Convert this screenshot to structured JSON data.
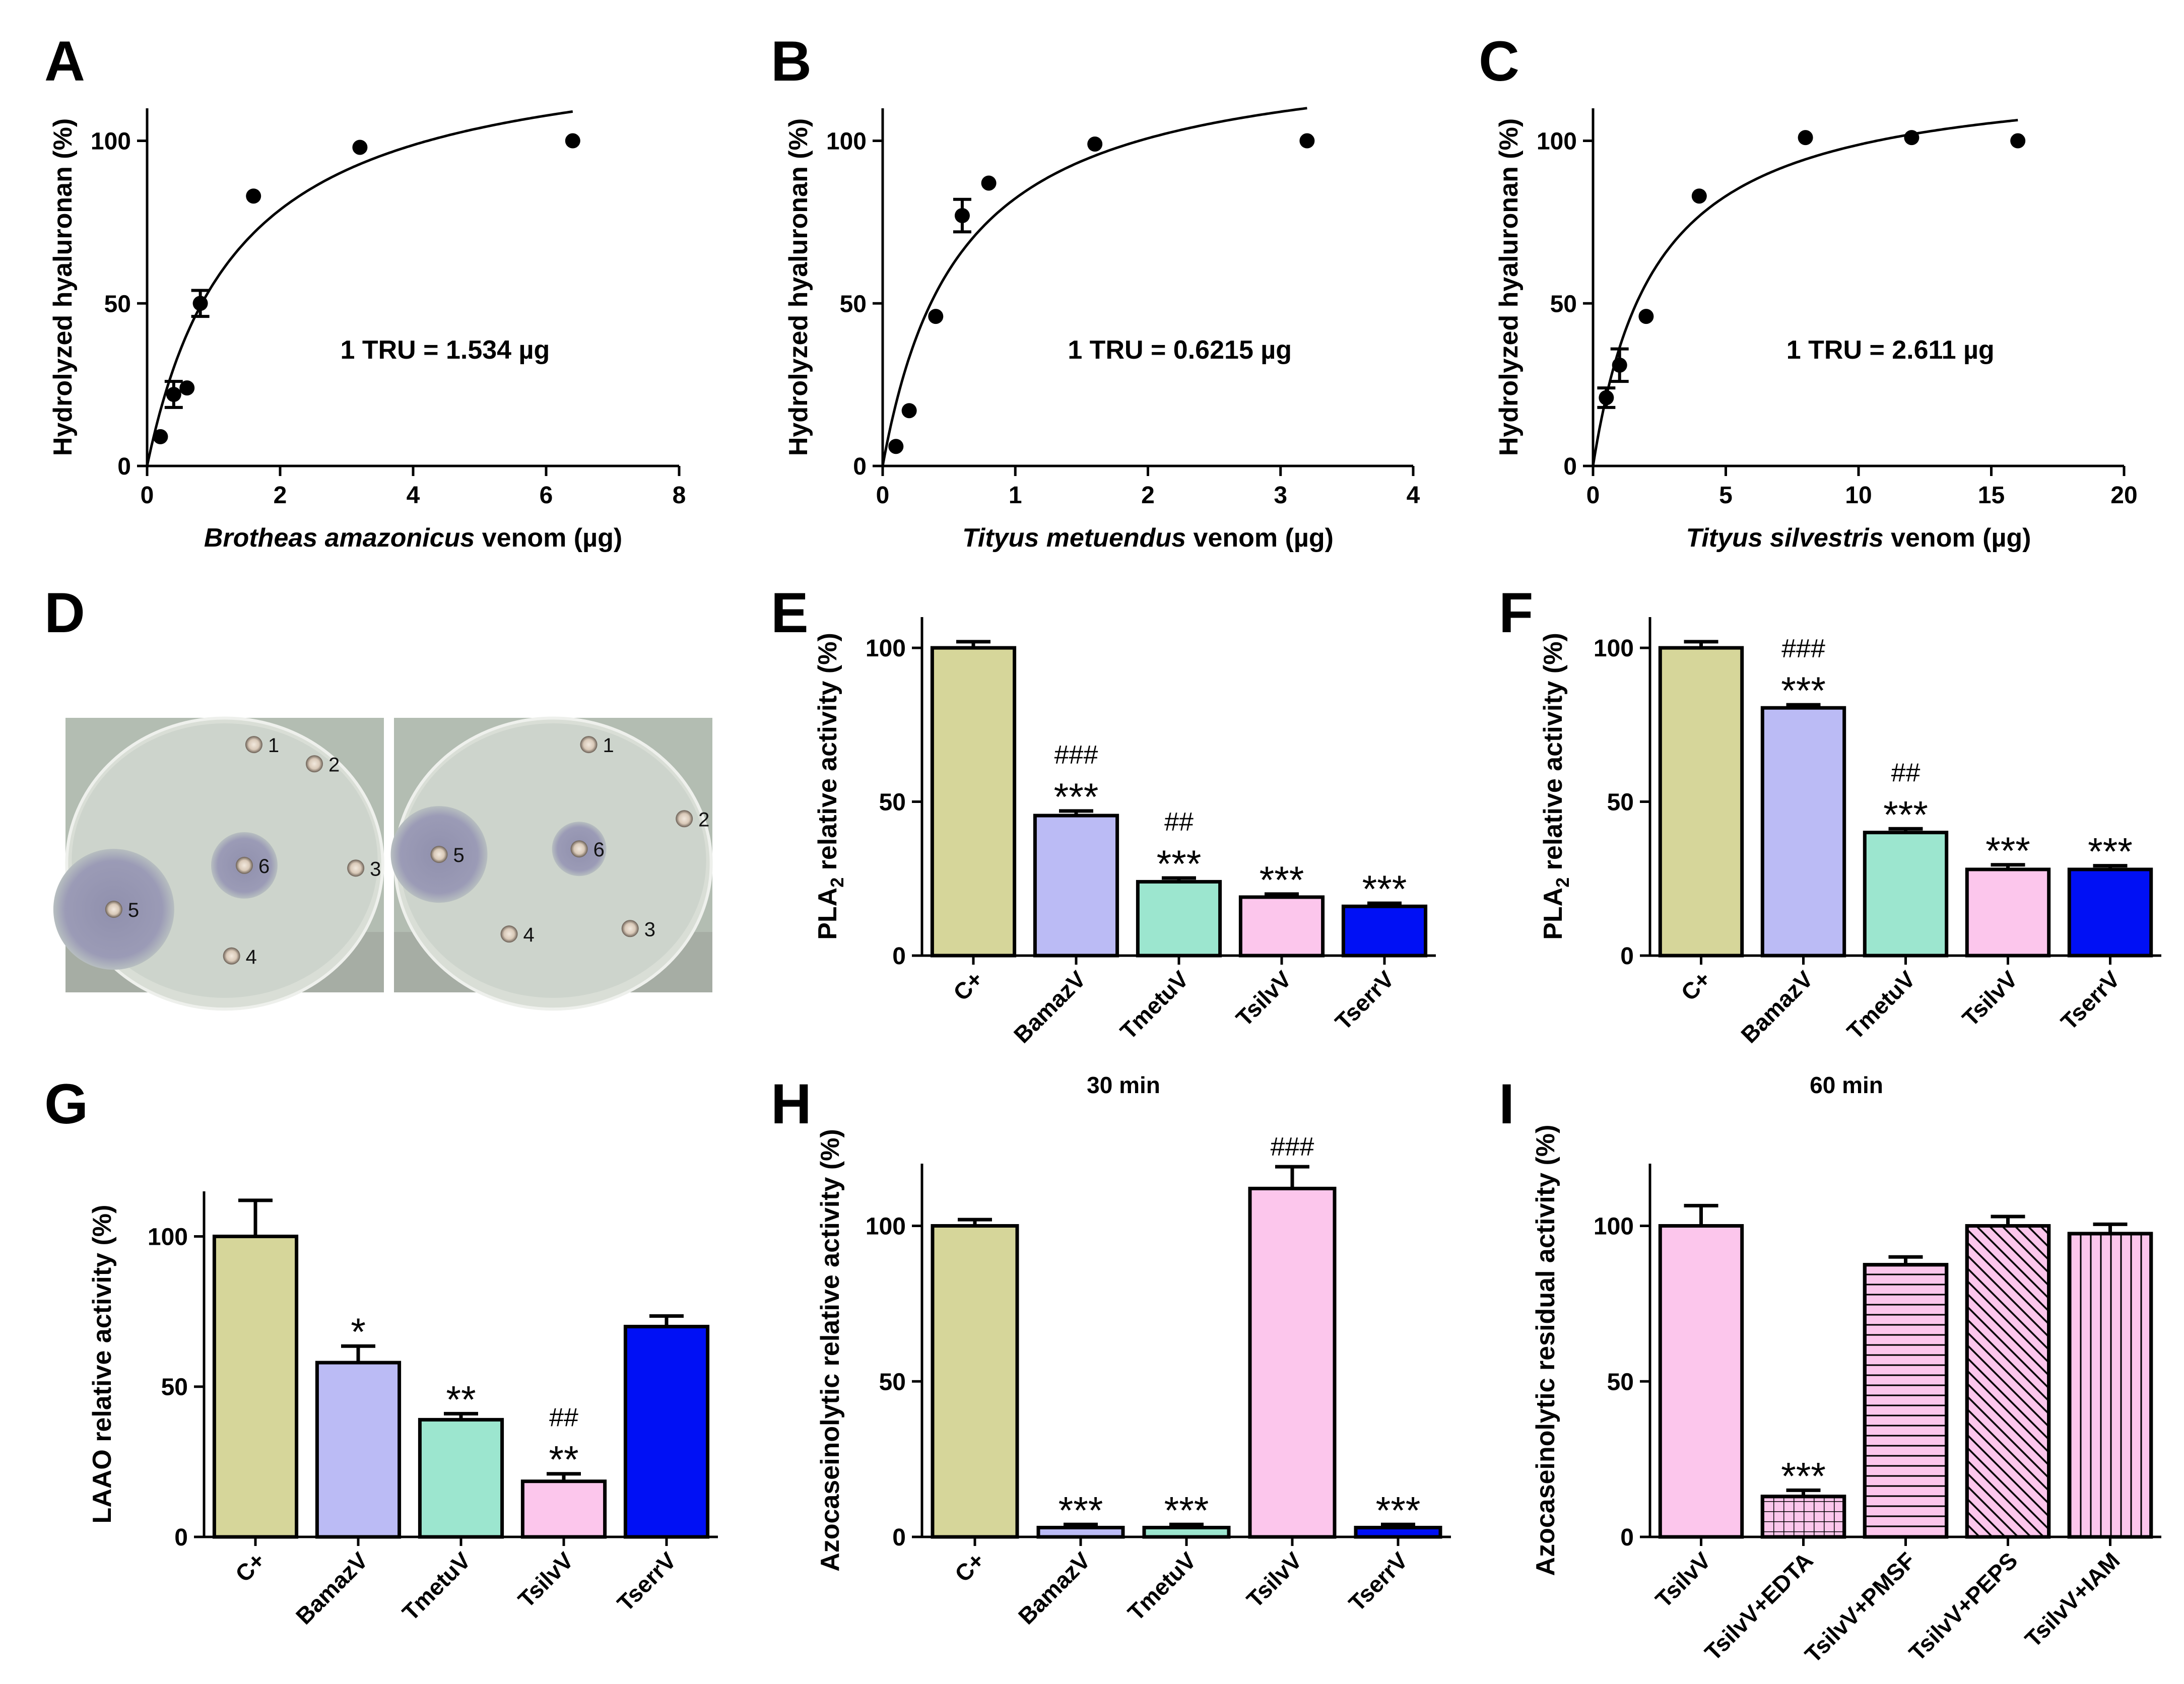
{
  "panel_letters": [
    "A",
    "B",
    "C",
    "D",
    "E",
    "F",
    "G",
    "H",
    "I"
  ],
  "colors": {
    "cplus": "#d6d69a",
    "bamaz": "#bbbbf5",
    "tmetu": "#9ce6cf",
    "tsilv": "#fcc6ec",
    "tserr": "#0010f5",
    "axis": "#000000",
    "plate_bg": "#b9c3b8",
    "agar": "#cdd4cc",
    "halo": "#8a8aa8"
  },
  "chart_data": [
    {
      "id": "A",
      "type": "scatter",
      "fit": "hyperbolic",
      "title": "",
      "xlabel_italic": "Brotheas amazonicus",
      "xlabel_rest": " venom (µg)",
      "ylabel": "Hydrolyzed hyaluronan (%)",
      "xlim": [
        0,
        8
      ],
      "ylim": [
        0,
        110
      ],
      "xticks": [
        0,
        2,
        4,
        6,
        8
      ],
      "yticks": [
        0,
        50,
        100
      ],
      "points": [
        {
          "x": 0.2,
          "y": 9,
          "err": 0
        },
        {
          "x": 0.4,
          "y": 22,
          "err": 4
        },
        {
          "x": 0.6,
          "y": 24,
          "err": 0
        },
        {
          "x": 0.8,
          "y": 50,
          "err": 4
        },
        {
          "x": 1.6,
          "y": 83,
          "err": 0
        },
        {
          "x": 3.2,
          "y": 98,
          "err": 0
        },
        {
          "x": 6.4,
          "y": 100,
          "err": 0
        }
      ],
      "fit_params": {
        "bmax": 132,
        "kd": 1.35,
        "xmax": 6.4
      },
      "annotation": "1 TRU = 1.534 µg"
    },
    {
      "id": "B",
      "type": "scatter",
      "fit": "hyperbolic",
      "title": "",
      "xlabel_italic": "Tityus metuendus",
      "xlabel_rest": " venom (µg)",
      "ylabel": "Hydrolyzed hyaluronan (%)",
      "xlim": [
        0,
        4
      ],
      "ylim": [
        0,
        110
      ],
      "xticks": [
        0,
        1,
        2,
        3,
        4
      ],
      "yticks": [
        0,
        50,
        100
      ],
      "points": [
        {
          "x": 0.1,
          "y": 6,
          "err": 0
        },
        {
          "x": 0.2,
          "y": 17,
          "err": 0
        },
        {
          "x": 0.4,
          "y": 46,
          "err": 0
        },
        {
          "x": 0.6,
          "y": 77,
          "err": 5
        },
        {
          "x": 0.8,
          "y": 87,
          "err": 0
        },
        {
          "x": 1.6,
          "y": 99,
          "err": 0
        },
        {
          "x": 3.2,
          "y": 100,
          "err": 0
        }
      ],
      "fit_params": {
        "bmax": 130,
        "kd": 0.58,
        "xmax": 3.2
      },
      "annotation": "1 TRU = 0.6215 µg"
    },
    {
      "id": "C",
      "type": "scatter",
      "fit": "hyperbolic",
      "title": "",
      "xlabel_italic": "Tityus silvestris",
      "xlabel_rest": " venom (µg)",
      "ylabel": "Hydrolyzed hyaluronan (%)",
      "xlim": [
        0,
        20
      ],
      "ylim": [
        0,
        110
      ],
      "xticks": [
        0,
        5,
        10,
        15,
        20
      ],
      "yticks": [
        0,
        50,
        100
      ],
      "points": [
        {
          "x": 0.5,
          "y": 21,
          "err": 3
        },
        {
          "x": 1.0,
          "y": 31,
          "err": 5
        },
        {
          "x": 2.0,
          "y": 46,
          "err": 0
        },
        {
          "x": 4.0,
          "y": 83,
          "err": 0
        },
        {
          "x": 8.0,
          "y": 101,
          "err": 0
        },
        {
          "x": 12.0,
          "y": 101,
          "err": 0
        },
        {
          "x": 16.0,
          "y": 100,
          "err": 0
        }
      ],
      "fit_params": {
        "bmax": 122,
        "kd": 2.35,
        "xmax": 16
      },
      "annotation": "1 TRU = 2.611 µg"
    },
    {
      "id": "E",
      "type": "bar",
      "title": "30 min",
      "ylabel_main": "PLA",
      "ylabel_sub": "2",
      "ylabel_tail": " relative activity (%)",
      "ylim": [
        0,
        110
      ],
      "yticks": [
        0,
        50,
        100
      ],
      "categories": [
        "C+",
        "BamazV",
        "TmetuV",
        "TsilvV",
        "TserrV"
      ],
      "values": [
        100,
        45.5,
        24,
        19,
        16
      ],
      "errors": [
        2,
        1.5,
        1.2,
        1,
        1
      ],
      "fills": [
        "cplus",
        "bamaz",
        "tmetu",
        "tsilv",
        "tserr"
      ],
      "patterns": [
        "",
        "",
        "",
        "",
        ""
      ],
      "sig_star": [
        "",
        "***",
        "***",
        "***",
        "***"
      ],
      "sig_hash": [
        "",
        "###",
        "##",
        "",
        ""
      ]
    },
    {
      "id": "F",
      "type": "bar",
      "title": "60 min",
      "ylabel_main": "PLA",
      "ylabel_sub": "2",
      "ylabel_tail": " relative activity (%)",
      "ylim": [
        0,
        110
      ],
      "yticks": [
        0,
        50,
        100
      ],
      "categories": [
        "C+",
        "BamazV",
        "TmetuV",
        "TsilvV",
        "TserrV"
      ],
      "values": [
        100,
        80.5,
        40,
        28,
        28
      ],
      "errors": [
        2,
        1,
        1.2,
        1.5,
        1.2
      ],
      "fills": [
        "cplus",
        "bamaz",
        "tmetu",
        "tsilv",
        "tserr"
      ],
      "patterns": [
        "",
        "",
        "",
        "",
        ""
      ],
      "sig_star": [
        "",
        "***",
        "***",
        "***",
        "***"
      ],
      "sig_hash": [
        "",
        "###",
        "##",
        "",
        ""
      ]
    },
    {
      "id": "G",
      "type": "bar",
      "title": "",
      "ylabel": "LAAO relative activity (%)",
      "ylim": [
        0,
        115
      ],
      "yticks": [
        0,
        50,
        100
      ],
      "categories": [
        "C+",
        "BamazV",
        "TmetuV",
        "TsilvV",
        "TserrV"
      ],
      "values": [
        100,
        58,
        39,
        18.5,
        70
      ],
      "errors": [
        12,
        5.5,
        2,
        2.5,
        3.5
      ],
      "fills": [
        "cplus",
        "bamaz",
        "tmetu",
        "tsilv",
        "tserr"
      ],
      "patterns": [
        "",
        "",
        "",
        "",
        ""
      ],
      "sig_star": [
        "",
        "*",
        "**",
        "**",
        ""
      ],
      "sig_hash": [
        "",
        "",
        "",
        "##",
        ""
      ]
    },
    {
      "id": "H",
      "type": "bar",
      "title": "",
      "ylabel": "Azocaseinolytic relative activity (%)",
      "ylim": [
        0,
        120
      ],
      "yticks": [
        0,
        50,
        100
      ],
      "categories": [
        "C+",
        "BamazV",
        "TmetuV",
        "TsilvV",
        "TserrV"
      ],
      "values": [
        100,
        3,
        3,
        112,
        3
      ],
      "errors": [
        2,
        1,
        1,
        7,
        1
      ],
      "fills": [
        "cplus",
        "bamaz",
        "tmetu",
        "tsilv",
        "tserr"
      ],
      "patterns": [
        "",
        "",
        "",
        "",
        ""
      ],
      "sig_star": [
        "",
        "***",
        "***",
        "",
        "***"
      ],
      "sig_hash": [
        "",
        "",
        "",
        "###",
        ""
      ]
    },
    {
      "id": "I",
      "type": "bar",
      "title": "",
      "ylabel": "Azocaseinolytic residual activity (%)",
      "ylim": [
        0,
        120
      ],
      "yticks": [
        0,
        50,
        100
      ],
      "categories": [
        "TsilvV",
        "TsilvV+EDTA",
        "TsilvV+PMSF",
        "TsilvV+PEPS",
        "TsilvV+IAM"
      ],
      "values": [
        100,
        13,
        87.5,
        100,
        97.5
      ],
      "errors": [
        6.5,
        2,
        2.5,
        3,
        3
      ],
      "fills": [
        "tsilv",
        "tsilv",
        "tsilv",
        "tsilv",
        "tsilv"
      ],
      "patterns": [
        "",
        "grid",
        "horiz",
        "diag",
        "vert"
      ],
      "sig_star": [
        "",
        "***",
        "",
        "",
        ""
      ],
      "sig_hash": [
        "",
        "",
        "",
        "",
        ""
      ]
    }
  ],
  "plates": [
    {
      "name": "plate-left",
      "wells": [
        {
          "label": "1",
          "halo": 0,
          "lx": 0.56,
          "ly": 0.18
        },
        {
          "label": "2",
          "halo": 0,
          "lx": 0.75,
          "ly": 0.25
        },
        {
          "label": "3",
          "halo": 0,
          "lx": 0.88,
          "ly": 0.63
        },
        {
          "label": "4",
          "halo": 0,
          "lx": 0.49,
          "ly": 0.95
        },
        {
          "label": "5",
          "halo": 1,
          "lx": 0.12,
          "ly": 0.78
        },
        {
          "label": "6",
          "halo": 0.55,
          "lx": 0.53,
          "ly": 0.62
        }
      ]
    },
    {
      "name": "plate-right",
      "wells": [
        {
          "label": "1",
          "halo": 0,
          "lx": 0.58,
          "ly": 0.18
        },
        {
          "label": "2",
          "halo": 0,
          "lx": 0.88,
          "ly": 0.45
        },
        {
          "label": "3",
          "halo": 0,
          "lx": 0.71,
          "ly": 0.85
        },
        {
          "label": "4",
          "halo": 0,
          "lx": 0.33,
          "ly": 0.87
        },
        {
          "label": "5",
          "halo": 0.8,
          "lx": 0.11,
          "ly": 0.58
        },
        {
          "label": "6",
          "halo": 0.45,
          "lx": 0.55,
          "ly": 0.56
        }
      ]
    }
  ]
}
